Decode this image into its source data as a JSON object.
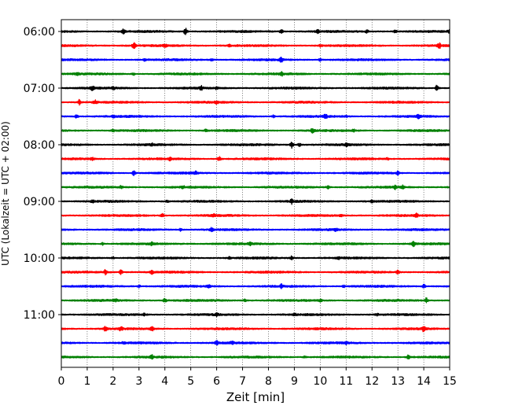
{
  "chart_data": {
    "type": "line",
    "title": "",
    "xlabel": "Zeit  [min]",
    "ylabel": "UTC (Lokalzeit = UTC + 02:00)",
    "xlim": [
      0,
      15
    ],
    "x_ticks": [
      0,
      1,
      2,
      3,
      4,
      5,
      6,
      7,
      8,
      9,
      10,
      11,
      12,
      13,
      14,
      15
    ],
    "x_grid": true,
    "y_grid": false,
    "legend": "none",
    "y_tick_labels": [
      "06:00",
      "07:00",
      "08:00",
      "09:00",
      "10:00",
      "11:00"
    ],
    "trace_interval_minutes": 15,
    "colors": [
      "#000000",
      "#ff0000",
      "#0000ff",
      "#008000"
    ],
    "traces": [
      {
        "start": "06:00",
        "color": "#000000",
        "events": [
          [
            2.4,
            2.5
          ],
          [
            4.8,
            5.0
          ],
          [
            8.5,
            2.8
          ],
          [
            9.9,
            1.6
          ],
          [
            11.8,
            1.6
          ],
          [
            12.9,
            1.6
          ],
          [
            15.0,
            2.4
          ]
        ]
      },
      {
        "start": "06:15",
        "color": "#ff0000",
        "events": [
          [
            2.8,
            3.5
          ],
          [
            4.0,
            1.4
          ],
          [
            6.5,
            1.2
          ],
          [
            10.0,
            1.3
          ],
          [
            14.6,
            3.0
          ]
        ]
      },
      {
        "start": "06:30",
        "color": "#0000ff",
        "events": [
          [
            3.2,
            1.3
          ],
          [
            5.8,
            1.2
          ],
          [
            8.5,
            2.6
          ],
          [
            10.0,
            1.5
          ]
        ]
      },
      {
        "start": "06:45",
        "color": "#008000",
        "events": [
          [
            0.6,
            1.4
          ],
          [
            2.8,
            1.3
          ],
          [
            8.5,
            2.2
          ]
        ]
      },
      {
        "start": "07:00",
        "color": "#000000",
        "events": [
          [
            1.2,
            3.2
          ],
          [
            2.0,
            1.5
          ],
          [
            5.4,
            2.6
          ],
          [
            6.0,
            1.5
          ],
          [
            14.5,
            3.5
          ]
        ]
      },
      {
        "start": "07:15",
        "color": "#ff0000",
        "events": [
          [
            0.7,
            3.0
          ],
          [
            1.3,
            2.2
          ],
          [
            6.0,
            1.3
          ]
        ]
      },
      {
        "start": "07:30",
        "color": "#0000ff",
        "events": [
          [
            0.6,
            2.4
          ],
          [
            2.0,
            1.4
          ],
          [
            8.2,
            1.5
          ],
          [
            10.2,
            3.5
          ],
          [
            11.0,
            1.2
          ],
          [
            13.8,
            2.4
          ]
        ]
      },
      {
        "start": "07:45",
        "color": "#008000",
        "events": [
          [
            2.0,
            1.3
          ],
          [
            5.6,
            1.7
          ],
          [
            9.7,
            2.8
          ],
          [
            11.3,
            1.2
          ]
        ]
      },
      {
        "start": "08:00",
        "color": "#000000",
        "events": [
          [
            3.5,
            1.2
          ],
          [
            8.9,
            3.8
          ],
          [
            9.2,
            1.8
          ],
          [
            11.0,
            1.5
          ]
        ]
      },
      {
        "start": "08:15",
        "color": "#ff0000",
        "events": [
          [
            1.2,
            1.4
          ],
          [
            4.2,
            1.7
          ],
          [
            6.1,
            2.5
          ],
          [
            12.6,
            1.3
          ]
        ]
      },
      {
        "start": "08:30",
        "color": "#0000ff",
        "events": [
          [
            2.8,
            2.8
          ],
          [
            5.2,
            1.8
          ],
          [
            13.0,
            2.2
          ]
        ]
      },
      {
        "start": "08:45",
        "color": "#008000",
        "events": [
          [
            2.3,
            1.5
          ],
          [
            4.7,
            1.4
          ],
          [
            10.3,
            1.7
          ],
          [
            12.9,
            2.0
          ],
          [
            13.2,
            2.5
          ]
        ]
      },
      {
        "start": "09:00",
        "color": "#000000",
        "events": [
          [
            1.2,
            1.3
          ],
          [
            4.1,
            1.3
          ],
          [
            8.9,
            2.6
          ],
          [
            12.0,
            1.2
          ]
        ]
      },
      {
        "start": "09:15",
        "color": "#ff0000",
        "events": [
          [
            3.9,
            2.4
          ],
          [
            5.9,
            1.2
          ],
          [
            10.8,
            1.4
          ],
          [
            13.7,
            2.8
          ]
        ]
      },
      {
        "start": "09:30",
        "color": "#0000ff",
        "events": [
          [
            4.6,
            1.6
          ],
          [
            5.8,
            2.2
          ],
          [
            10.6,
            1.2
          ]
        ]
      },
      {
        "start": "09:45",
        "color": "#008000",
        "events": [
          [
            1.6,
            1.3
          ],
          [
            3.5,
            1.8
          ],
          [
            7.3,
            1.3
          ],
          [
            13.6,
            2.8
          ]
        ]
      },
      {
        "start": "10:00",
        "color": "#000000",
        "events": [
          [
            2.0,
            1.3
          ],
          [
            6.5,
            1.2
          ],
          [
            8.9,
            2.2
          ],
          [
            10.7,
            1.2
          ]
        ]
      },
      {
        "start": "10:15",
        "color": "#ff0000",
        "events": [
          [
            1.7,
            2.6
          ],
          [
            2.3,
            2.6
          ],
          [
            3.5,
            2.2
          ],
          [
            13.0,
            2.0
          ]
        ]
      },
      {
        "start": "10:30",
        "color": "#0000ff",
        "events": [
          [
            3.0,
            1.3
          ],
          [
            5.7,
            1.4
          ],
          [
            8.5,
            2.2
          ],
          [
            10.9,
            1.2
          ],
          [
            14.0,
            2.2
          ]
        ]
      },
      {
        "start": "10:45",
        "color": "#008000",
        "events": [
          [
            2.1,
            1.2
          ],
          [
            4.0,
            2.2
          ],
          [
            7.1,
            1.4
          ],
          [
            10.0,
            1.2
          ],
          [
            14.1,
            2.8
          ]
        ]
      },
      {
        "start": "11:00",
        "color": "#000000",
        "events": [
          [
            3.2,
            1.4
          ],
          [
            6.0,
            1.3
          ],
          [
            9.0,
            1.2
          ],
          [
            12.2,
            1.2
          ]
        ]
      },
      {
        "start": "11:15",
        "color": "#ff0000",
        "events": [
          [
            1.7,
            2.7
          ],
          [
            2.3,
            2.2
          ],
          [
            3.5,
            2.4
          ],
          [
            14.0,
            3.2
          ]
        ]
      },
      {
        "start": "11:30",
        "color": "#0000ff",
        "events": [
          [
            2.4,
            1.3
          ],
          [
            6.0,
            2.3
          ],
          [
            6.6,
            1.6
          ],
          [
            11.0,
            1.2
          ]
        ]
      },
      {
        "start": "11:45",
        "color": "#008000",
        "events": [
          [
            3.5,
            2.0
          ],
          [
            9.4,
            1.4
          ],
          [
            13.4,
            2.8
          ]
        ]
      }
    ]
  }
}
